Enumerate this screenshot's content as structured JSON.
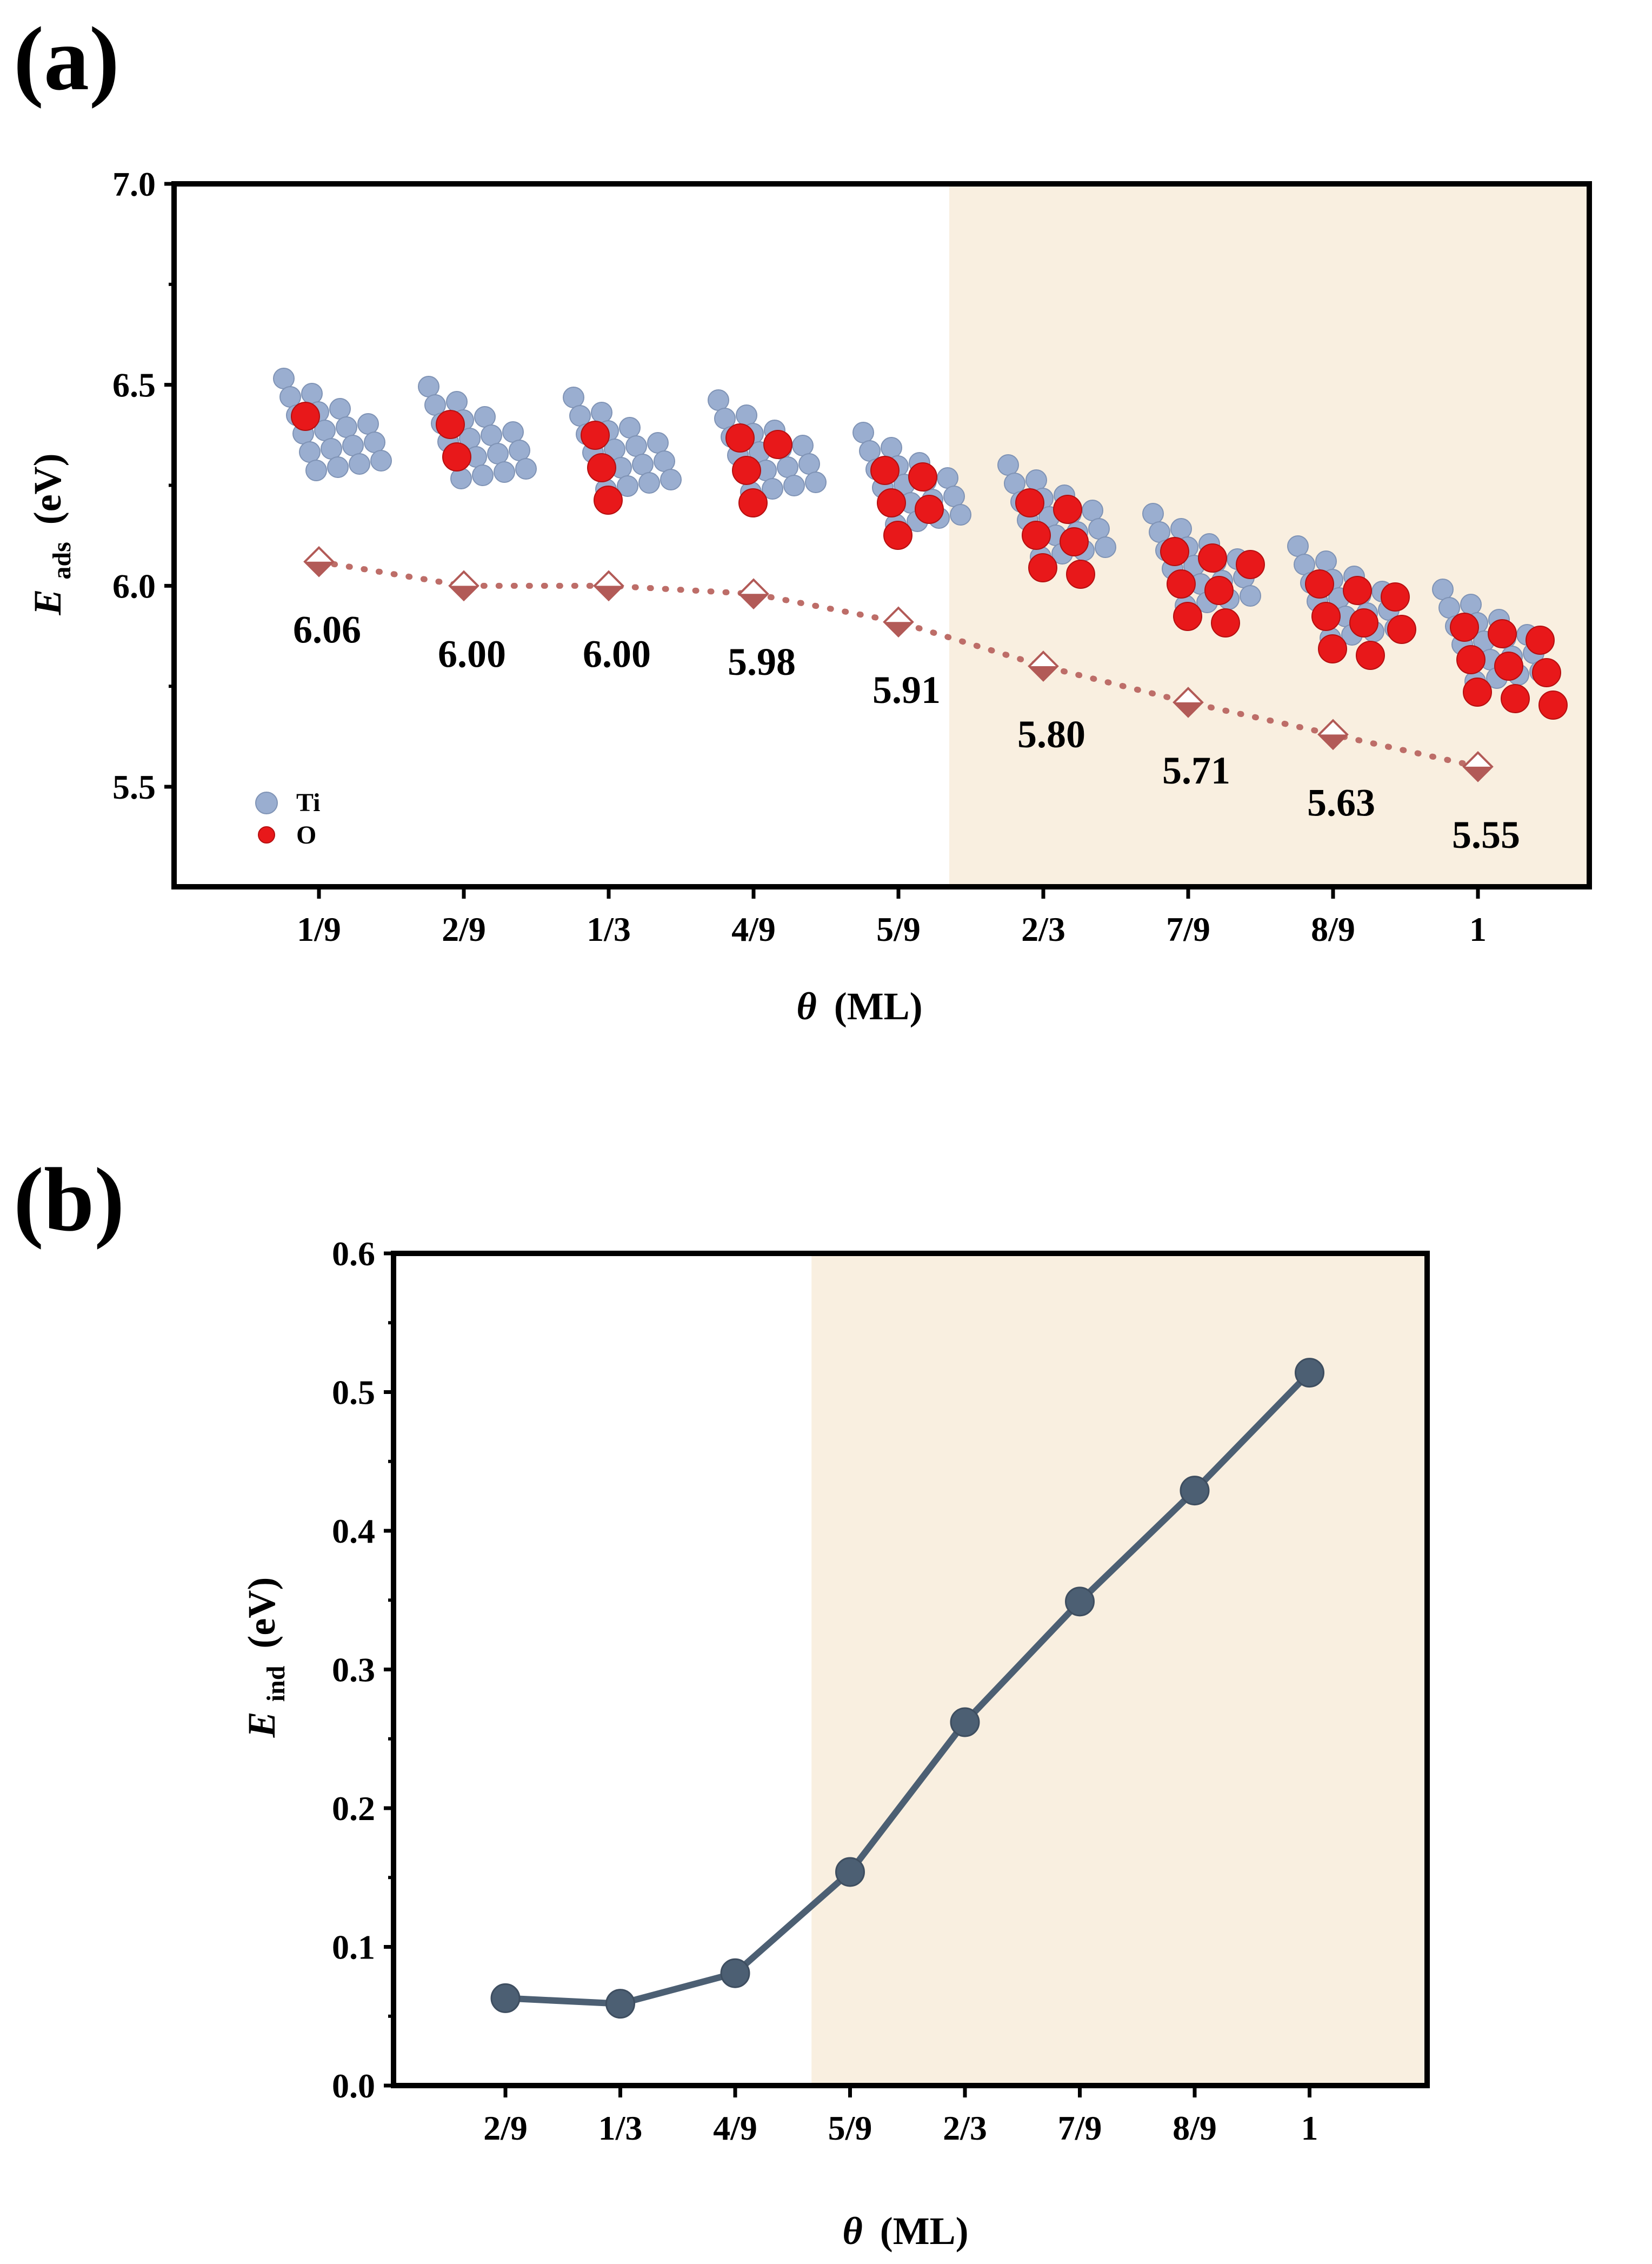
{
  "colors": {
    "shade": "#f9efe0",
    "marker_a": "#b25a57",
    "line_a": "#bd6d68",
    "line_b": "#4c5f73",
    "ti_atom": "#9aaed0",
    "o_atom": "#e8181a"
  },
  "chart_data": [
    {
      "panel": "(a)",
      "type": "line",
      "x_title_symbol": "θ",
      "x_title_unit": "(ML)",
      "y_title_symbol": "E",
      "y_title_sub": "ads",
      "y_title_unit": "(eV)",
      "categories": [
        "1/9",
        "2/9",
        "1/3",
        "4/9",
        "5/9",
        "2/3",
        "7/9",
        "8/9",
        "1"
      ],
      "values": [
        6.06,
        6.0,
        6.0,
        5.98,
        5.91,
        5.8,
        5.71,
        5.63,
        5.55
      ],
      "value_labels": [
        "6.06",
        "6.00",
        "6.00",
        "5.98",
        "5.91",
        "5.80",
        "5.71",
        "5.63",
        "5.55"
      ],
      "ylim": [
        5.25,
        7.0
      ],
      "yticks": [
        "5.5",
        "6.0",
        "6.5",
        "7.0"
      ],
      "ytick_values": [
        5.5,
        6.0,
        6.5,
        7.0
      ],
      "shade_from": 4.5,
      "line_style": "dotted",
      "marker": "half-filled diamond",
      "legend": [
        {
          "name": "Ti",
          "icon": "ti-atom-icon"
        },
        {
          "name": "O",
          "icon": "o-atom-icon"
        }
      ],
      "inset_structures": "adsorbed O on Ti slab for each coverage",
      "o_counts": [
        1,
        2,
        3,
        4,
        5,
        6,
        7,
        8,
        9
      ]
    },
    {
      "panel": "(b)",
      "type": "line",
      "x_title_symbol": "θ",
      "x_title_unit": "(ML)",
      "y_title_symbol": "E",
      "y_title_sub": "ind",
      "y_title_unit": "(eV)",
      "categories": [
        "2/9",
        "1/3",
        "4/9",
        "5/9",
        "2/3",
        "7/9",
        "8/9",
        "1"
      ],
      "values": [
        0.063,
        0.059,
        0.081,
        0.154,
        0.262,
        0.349,
        0.429,
        0.514
      ],
      "ylim": [
        0.0,
        0.6
      ],
      "yticks": [
        "0.0",
        "0.1",
        "0.2",
        "0.3",
        "0.4",
        "0.5",
        "0.6"
      ],
      "ytick_values": [
        0.0,
        0.1,
        0.2,
        0.3,
        0.4,
        0.5,
        0.6
      ],
      "shade_from": 2.5,
      "line_style": "solid",
      "marker": "filled circle"
    }
  ]
}
